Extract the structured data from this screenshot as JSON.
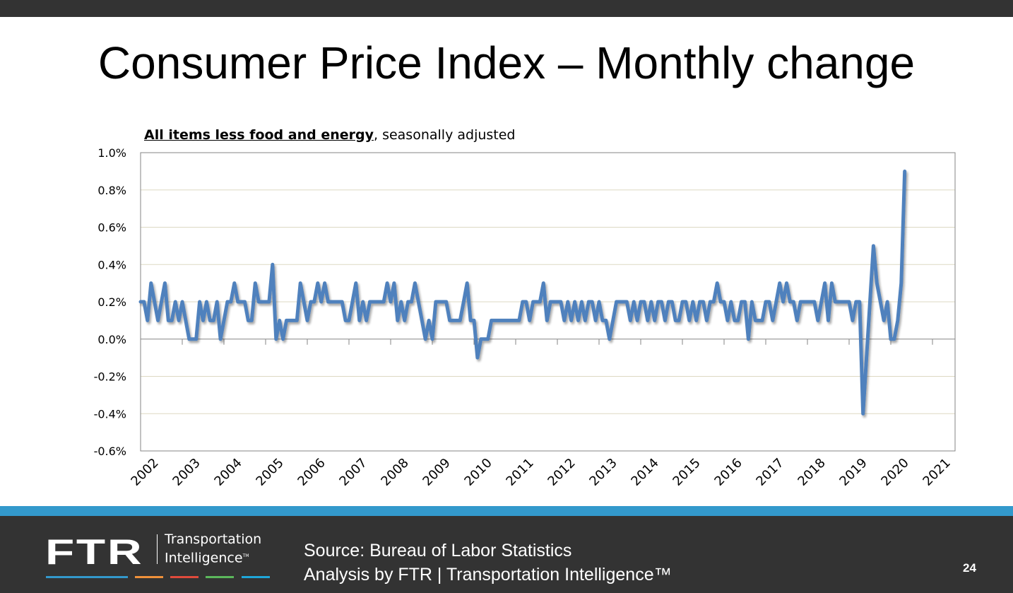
{
  "slide": {
    "title": "Consumer Price Index – Monthly change",
    "page_number": "24"
  },
  "footer": {
    "logo_mark": "FTR",
    "logo_line1": "Transportation",
    "logo_line2": "Intelligence",
    "logo_tm": "TM",
    "source_line1": "Source: Bureau of Labor Statistics",
    "source_line2": "Analysis by FTR | Transportation Intelligence™",
    "stripe_colors": [
      "#3399cc",
      "#f0913a",
      "#e04a3c",
      "#5cb85c",
      "#1fa6d9"
    ],
    "band_color": "#3399cc",
    "background": "#333333"
  },
  "chart_data": {
    "type": "line",
    "title": "",
    "subtitle_bold": "All items less food and energy",
    "subtitle_rest": ", seasonally adjusted",
    "xlabel": "",
    "ylabel": "",
    "ylim": [
      -0.6,
      1.0
    ],
    "yticks": [
      -0.6,
      -0.4,
      -0.2,
      0.0,
      0.2,
      0.4,
      0.6,
      0.8,
      1.0
    ],
    "ytick_labels": [
      "-0.6%",
      "-0.4%",
      "-0.2%",
      "0.0%",
      "0.2%",
      "0.4%",
      "0.6%",
      "0.8%",
      "1.0%"
    ],
    "x_tick_labels": [
      "2002",
      "2003",
      "2004",
      "2005",
      "2006",
      "2007",
      "2008",
      "2009",
      "2010",
      "2011",
      "2012",
      "2013",
      "2014",
      "2015",
      "2016",
      "2017",
      "2018",
      "2019",
      "2020",
      "2021"
    ],
    "grid": true,
    "line_color": "#4f81bd",
    "grid_color": "#ddd9c3",
    "start": "2002-01",
    "frequency": "monthly",
    "series": [
      {
        "name": "CPI All items less food and energy, monthly % change",
        "values": [
          0.2,
          0.2,
          0.1,
          0.3,
          0.2,
          0.1,
          0.2,
          0.3,
          0.1,
          0.1,
          0.2,
          0.1,
          0.2,
          0.1,
          0.0,
          0.0,
          0.0,
          0.2,
          0.1,
          0.2,
          0.1,
          0.1,
          0.2,
          0.0,
          0.1,
          0.2,
          0.2,
          0.3,
          0.2,
          0.2,
          0.2,
          0.1,
          0.1,
          0.3,
          0.2,
          0.2,
          0.2,
          0.2,
          0.4,
          0.0,
          0.1,
          0.0,
          0.1,
          0.1,
          0.1,
          0.1,
          0.3,
          0.2,
          0.1,
          0.2,
          0.2,
          0.3,
          0.2,
          0.3,
          0.2,
          0.2,
          0.2,
          0.2,
          0.2,
          0.1,
          0.1,
          0.2,
          0.3,
          0.1,
          0.2,
          0.1,
          0.2,
          0.2,
          0.2,
          0.2,
          0.2,
          0.3,
          0.2,
          0.3,
          0.1,
          0.2,
          0.1,
          0.2,
          0.2,
          0.3,
          0.2,
          0.1,
          0.0,
          0.1,
          0.0,
          0.2,
          0.2,
          0.2,
          0.2,
          0.1,
          0.1,
          0.1,
          0.1,
          0.2,
          0.3,
          0.1,
          0.1,
          -0.1,
          0.0,
          0.0,
          0.0,
          0.1,
          0.1,
          0.1,
          0.1,
          0.1,
          0.1,
          0.1,
          0.1,
          0.1,
          0.2,
          0.2,
          0.1,
          0.2,
          0.2,
          0.2,
          0.3,
          0.1,
          0.2,
          0.2,
          0.2,
          0.2,
          0.1,
          0.2,
          0.1,
          0.2,
          0.1,
          0.2,
          0.1,
          0.2,
          0.2,
          0.1,
          0.2,
          0.1,
          0.1,
          0.0,
          0.1,
          0.2,
          0.2,
          0.2,
          0.2,
          0.1,
          0.2,
          0.1,
          0.2,
          0.2,
          0.1,
          0.2,
          0.1,
          0.2,
          0.2,
          0.1,
          0.2,
          0.2,
          0.1,
          0.1,
          0.2,
          0.2,
          0.1,
          0.2,
          0.1,
          0.2,
          0.2,
          0.1,
          0.2,
          0.2,
          0.3,
          0.2,
          0.2,
          0.1,
          0.2,
          0.1,
          0.1,
          0.2,
          0.2,
          0.0,
          0.2,
          0.1,
          0.1,
          0.1,
          0.2,
          0.2,
          0.1,
          0.2,
          0.3,
          0.2,
          0.3,
          0.2,
          0.2,
          0.1,
          0.2,
          0.2,
          0.2,
          0.2,
          0.2,
          0.1,
          0.2,
          0.3,
          0.1,
          0.3,
          0.2,
          0.2,
          0.2,
          0.2,
          0.2,
          0.1,
          0.2,
          0.2,
          -0.4,
          -0.1,
          0.2,
          0.5,
          0.3,
          0.2,
          0.1,
          0.2,
          0.0,
          0.0,
          0.1,
          0.3,
          0.9
        ]
      }
    ]
  }
}
